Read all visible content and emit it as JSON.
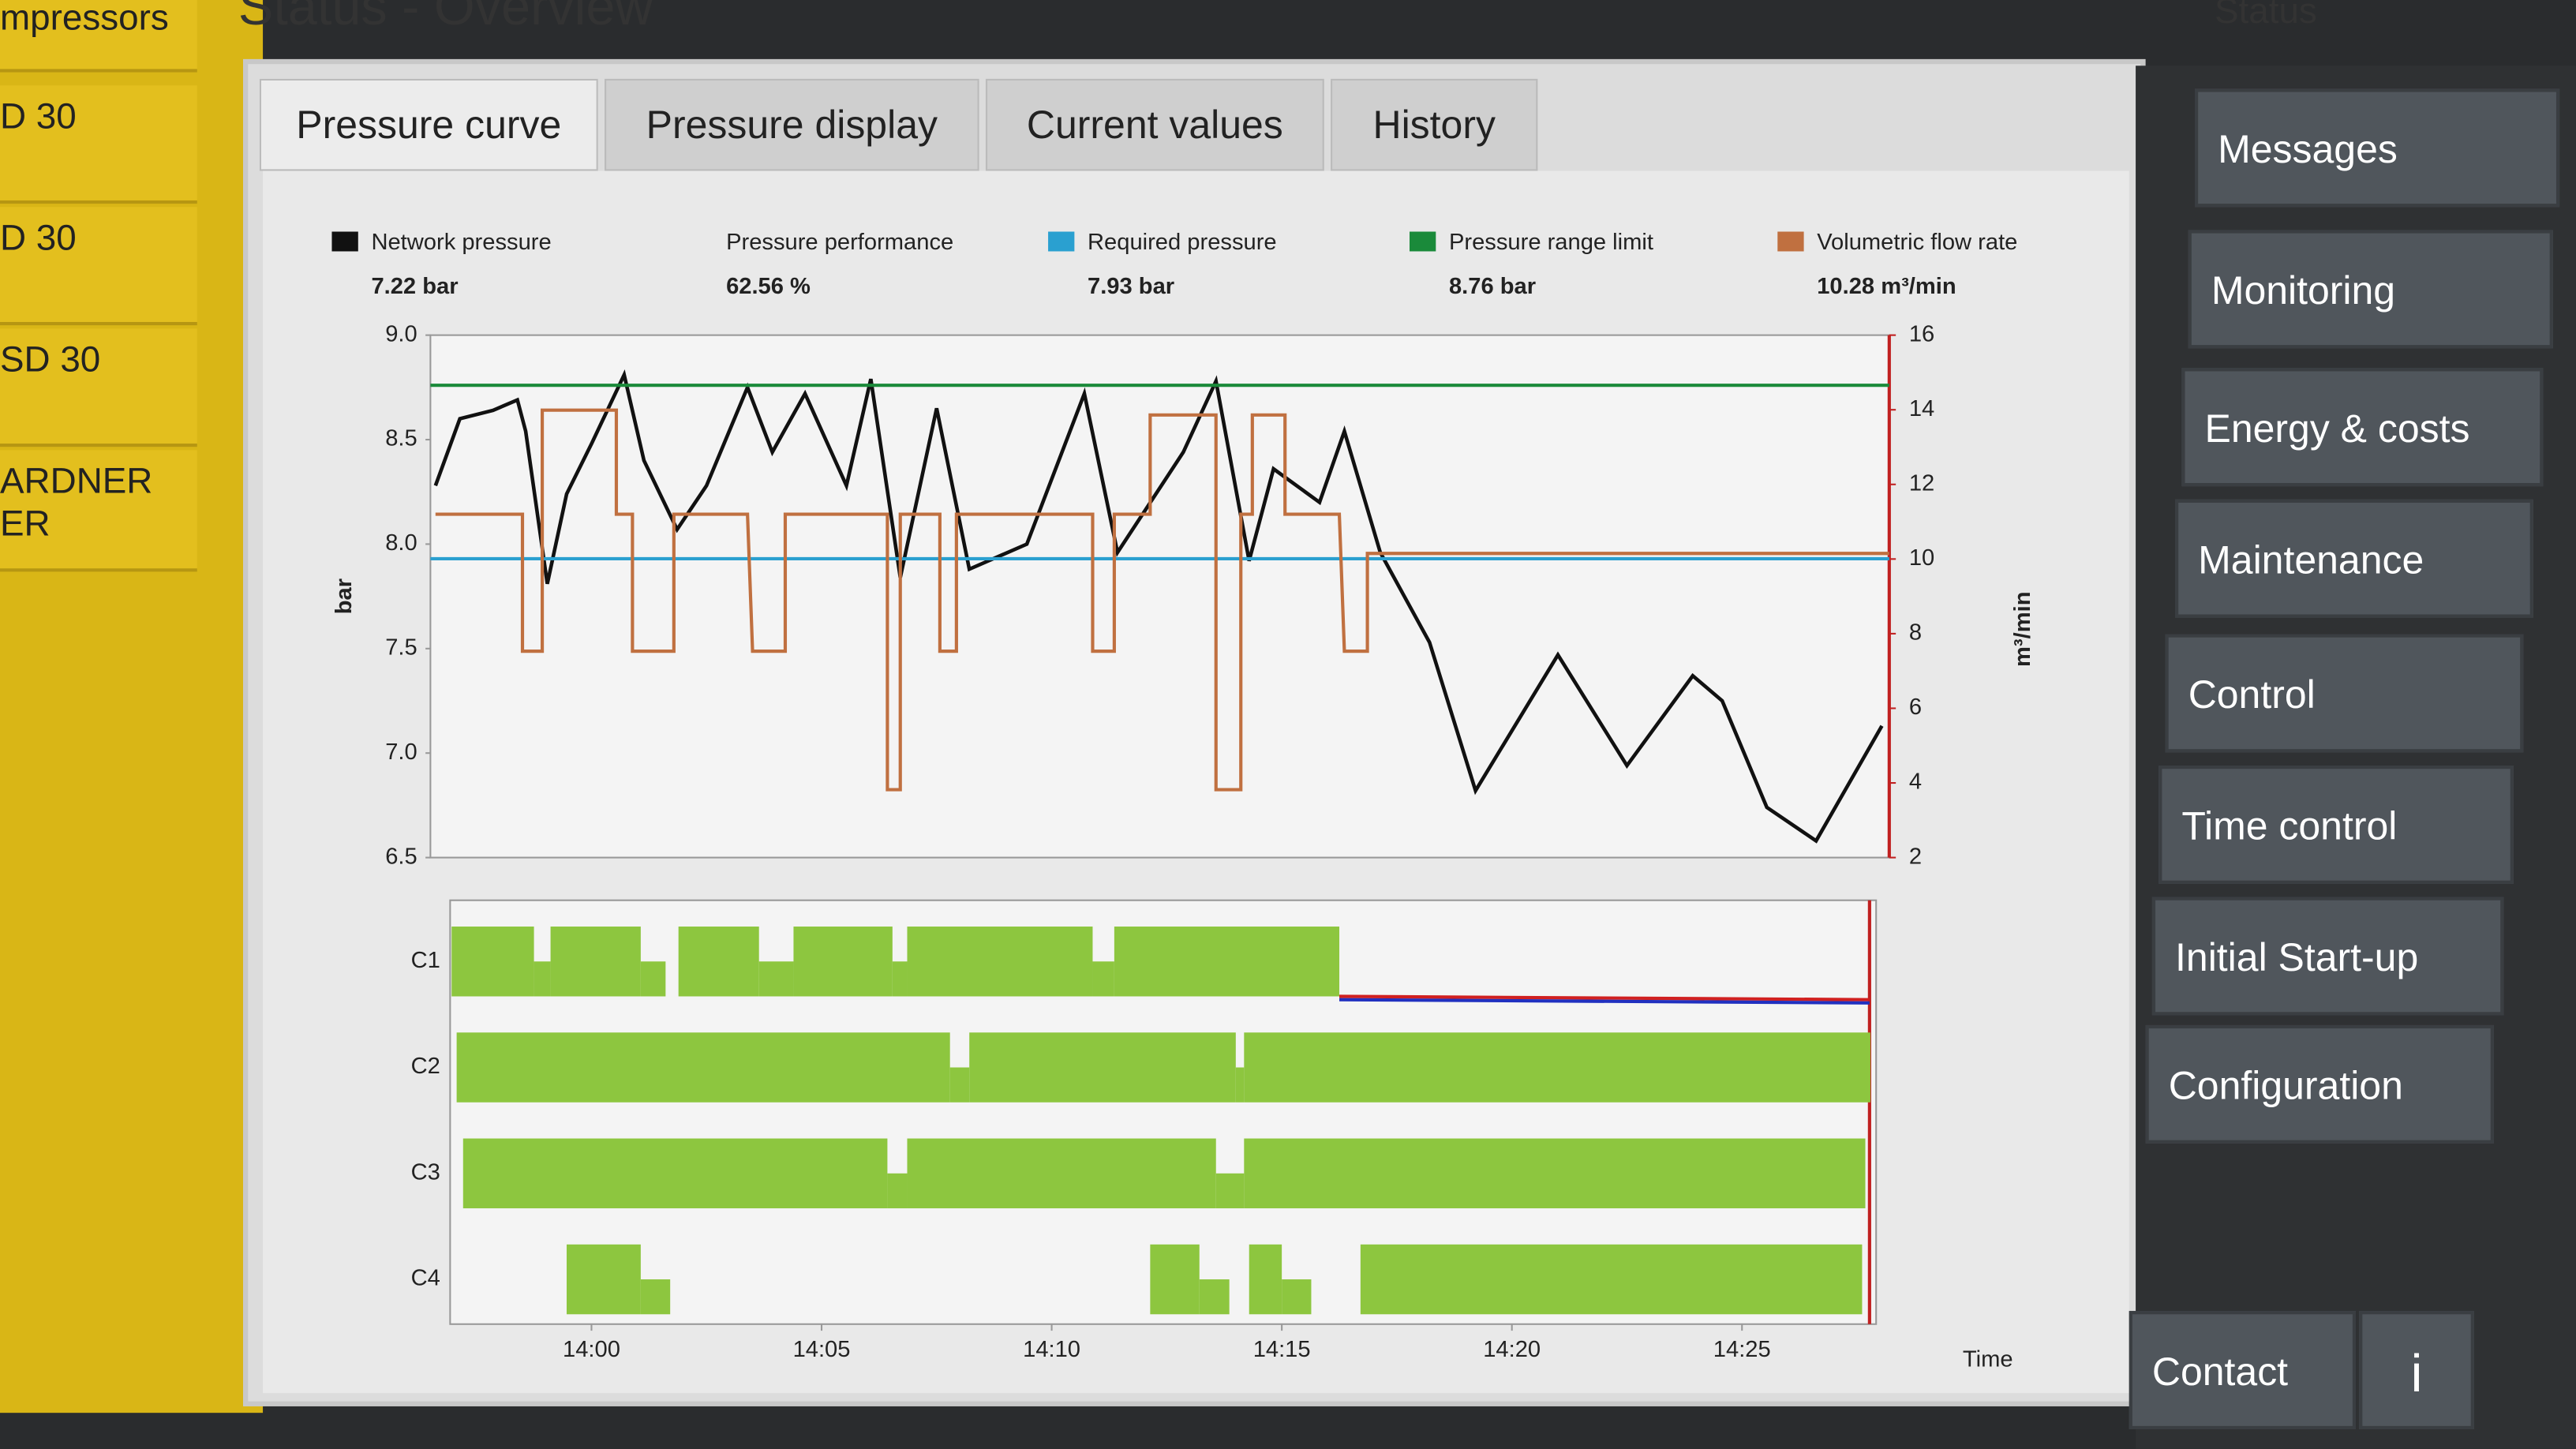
{
  "sidebar": {
    "items": [
      "mpressors",
      "D 30",
      "D 30",
      "SD 30",
      "ARDNER\nER"
    ]
  },
  "header": {
    "title": "Status - Overview",
    "right_title": "Status"
  },
  "tabs": [
    "Pressure curve",
    "Pressure display",
    "Current values",
    "History"
  ],
  "nav": [
    "Messages",
    "Monitoring",
    "Energy & costs",
    "Maintenance",
    "Control",
    "Time control",
    "Initial Start-up",
    "Configuration"
  ],
  "footer": {
    "contact": "Contact",
    "info": "i"
  },
  "chart_data": {
    "type": "line",
    "y_label": "bar",
    "y2_label": "m³/min",
    "x_label": "Time",
    "xlim": [
      -3.5,
      28.2
    ],
    "xticks": [
      {
        "value": 0,
        "label": "14:00"
      },
      {
        "value": 5,
        "label": "14:05"
      },
      {
        "value": 10,
        "label": "14:10"
      },
      {
        "value": 15,
        "label": "14:15"
      },
      {
        "value": 20,
        "label": "14:20"
      },
      {
        "value": 25,
        "label": "14:25"
      }
    ],
    "ylim": [
      6.5,
      9.0
    ],
    "yticks": [
      {
        "value": 9,
        "label": "9.0"
      },
      8.5,
      {
        "value": 8,
        "label": "8.0"
      },
      7.5,
      {
        "value": 7,
        "label": "7.0"
      },
      6.5
    ],
    "y2lim": [
      2,
      16
    ],
    "y2ticks": [
      16,
      14,
      12,
      10,
      8,
      6,
      4,
      2
    ],
    "performance": {
      "name": "Pressure performance",
      "readout": "62.56 %"
    },
    "series": [
      {
        "name": "Network pressure",
        "readout": "7.22 bar",
        "color": "#111111",
        "x": [
          -3.39,
          -2.86,
          -2.14,
          -1.61,
          -1.43,
          -0.96,
          -0.54,
          0,
          0.71,
          1.14,
          1.86,
          2.5,
          3.39,
          3.93,
          4.64,
          5.54,
          6.07,
          6.71,
          7.5,
          8.21,
          9.46,
          10.71,
          11.43,
          12.86,
          13.57,
          14.29,
          14.82,
          15.82,
          16.36,
          17.14,
          18.21,
          19.21,
          21.0,
          22.5,
          23.93,
          24.57,
          25.54,
          26.61,
          28.04
        ],
        "y": [
          8.28,
          8.6,
          8.64,
          8.69,
          8.54,
          7.81,
          8.24,
          8.48,
          8.81,
          8.4,
          8.07,
          8.28,
          8.75,
          8.44,
          8.72,
          8.28,
          8.79,
          7.84,
          8.65,
          7.88,
          8.0,
          8.72,
          7.96,
          8.44,
          8.78,
          7.92,
          8.36,
          8.2,
          8.54,
          7.96,
          7.53,
          6.82,
          7.47,
          6.94,
          7.37,
          7.25,
          6.74,
          6.58,
          7.13
        ]
      },
      {
        "name": "Required pressure",
        "readout": "7.93 bar",
        "color": "#2aa0d0",
        "x": [
          -3.5,
          28.2
        ],
        "y": [
          7.93,
          7.93
        ]
      },
      {
        "name": "Pressure range limit",
        "readout": "8.76 bar",
        "color": "#1a8a3a",
        "x": [
          -3.5,
          28.2
        ],
        "y": [
          8.76,
          8.76
        ]
      },
      {
        "name": "Volumetric flow rate",
        "readout": "10.28 m³/min",
        "color": "#c07040",
        "axis": "y2",
        "x": [
          -3.39,
          -1.5,
          -1.5,
          -1.07,
          -1.07,
          0.54,
          0.54,
          0.89,
          0.89,
          1.79,
          1.79,
          3.39,
          3.5,
          4.21,
          4.21,
          6.43,
          6.43,
          6.71,
          6.71,
          7.57,
          7.57,
          7.93,
          7.93,
          10.89,
          10.89,
          11.36,
          11.36,
          12.14,
          12.14,
          13.57,
          13.57,
          14.11,
          14.11,
          14.36,
          14.36,
          15.07,
          15.07,
          16.25,
          16.36,
          16.86,
          16.86,
          28.2
        ],
        "y": [
          11.2,
          11.2,
          7.53,
          7.53,
          13.99,
          13.99,
          11.2,
          11.2,
          7.53,
          7.53,
          11.2,
          11.2,
          7.53,
          7.53,
          11.2,
          11.2,
          3.82,
          3.82,
          11.2,
          11.2,
          7.53,
          7.53,
          11.2,
          11.2,
          7.53,
          7.53,
          11.2,
          11.2,
          13.86,
          13.86,
          3.82,
          3.82,
          11.2,
          11.2,
          13.86,
          13.86,
          11.2,
          11.2,
          7.53,
          7.53,
          10.15,
          10.15
        ]
      }
    ],
    "lanes": [
      {
        "name": "C1",
        "segments": [
          [
            -3.04,
            -1.25,
            1
          ],
          [
            -1.25,
            -0.89,
            0.5
          ],
          [
            -0.89,
            1.07,
            1
          ],
          [
            1.07,
            1.61,
            0.5
          ],
          [
            1.89,
            3.64,
            1
          ],
          [
            3.64,
            4.39,
            0.5
          ],
          [
            4.39,
            6.54,
            1
          ],
          [
            6.54,
            6.86,
            0.5
          ],
          [
            6.86,
            10.89,
            1
          ],
          [
            10.89,
            11.36,
            0.5
          ],
          [
            11.36,
            16.25,
            1
          ]
        ]
      },
      {
        "name": "C2",
        "segments": [
          [
            -2.93,
            7.79,
            1
          ],
          [
            7.79,
            8.21,
            0.5
          ],
          [
            8.21,
            14.0,
            1
          ],
          [
            14.0,
            14.18,
            0.5
          ],
          [
            14.18,
            27.79,
            1
          ]
        ]
      },
      {
        "name": "C3",
        "segments": [
          [
            -2.79,
            6.43,
            1
          ],
          [
            6.43,
            6.86,
            0.5
          ],
          [
            6.86,
            13.57,
            1
          ],
          [
            13.57,
            14.18,
            0.5
          ],
          [
            14.18,
            27.68,
            1
          ]
        ]
      },
      {
        "name": "C4",
        "segments": [
          [
            -0.54,
            1.07,
            1
          ],
          [
            1.07,
            1.71,
            0.5
          ],
          [
            12.14,
            13.21,
            1
          ],
          [
            13.21,
            13.86,
            0.5
          ],
          [
            14.29,
            15.0,
            1
          ],
          [
            15.0,
            15.64,
            0.5
          ],
          [
            16.71,
            27.61,
            1
          ]
        ]
      }
    ]
  }
}
